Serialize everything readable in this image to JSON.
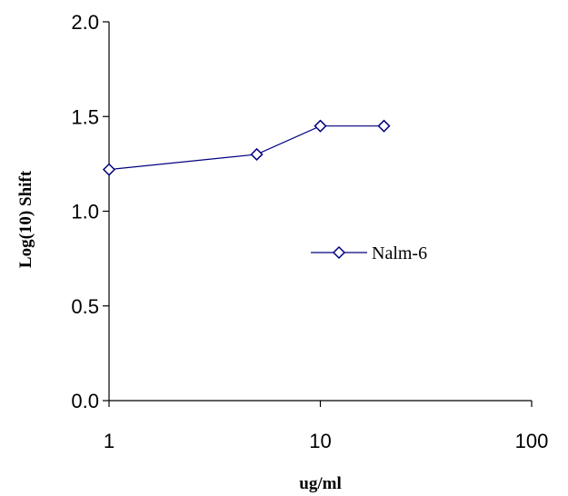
{
  "chart_data": {
    "type": "line",
    "title": "",
    "xlabel": "ug/ml",
    "ylabel": "Log(10) Shift",
    "x_scale": "log",
    "xlim": [
      1,
      100
    ],
    "ylim": [
      0,
      2
    ],
    "x_ticks": [
      1,
      10,
      100
    ],
    "x_tick_labels": [
      "1",
      "10",
      "100"
    ],
    "y_ticks": [
      0,
      0.5,
      1.0,
      1.5,
      2.0
    ],
    "y_tick_labels": [
      "0.0",
      "0.5",
      "1.0",
      "1.5",
      "2.0"
    ],
    "grid": false,
    "legend": "center-right",
    "series": [
      {
        "name": "Nalm-6",
        "color": "#000080",
        "marker": "diamond-open",
        "x": [
          1,
          5,
          10,
          20
        ],
        "y": [
          1.22,
          1.3,
          1.45,
          1.45
        ]
      }
    ]
  }
}
